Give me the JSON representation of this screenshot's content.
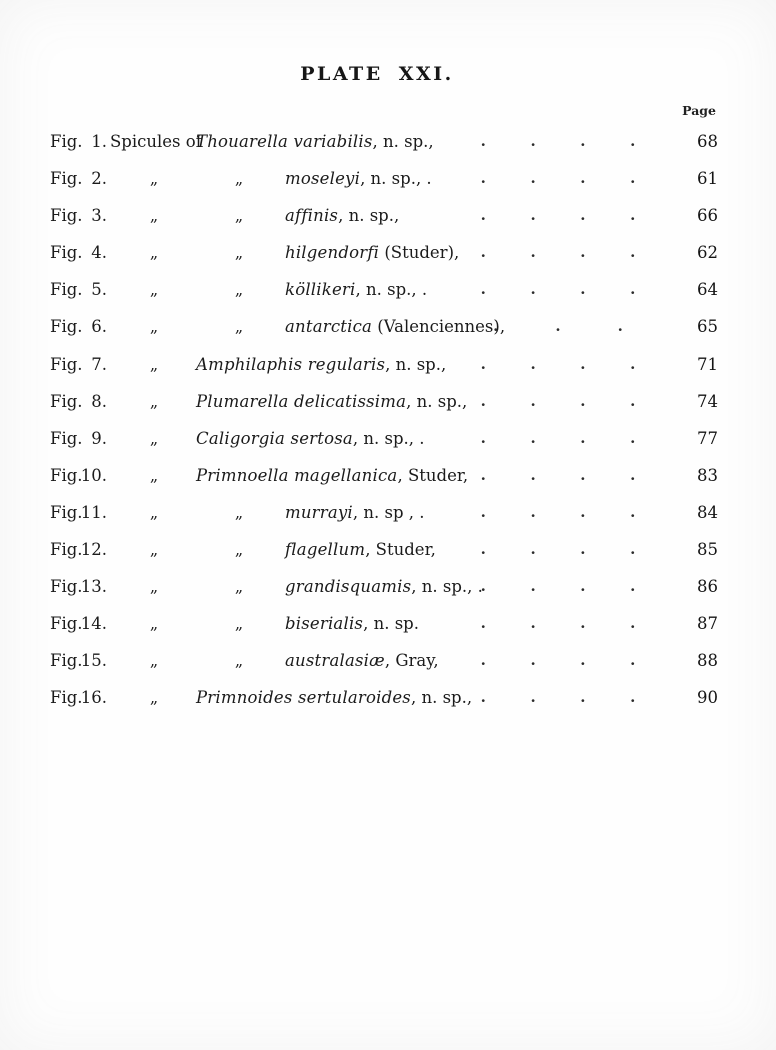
{
  "title": "PLATE XXI.",
  "page_header": "Page",
  "fig_label": "Fig.",
  "ditto_mark": "„",
  "rows": [
    {
      "num": "1.",
      "prefix": "Spicules of",
      "second": "",
      "indent": "g",
      "name_italic": "Thouarella variabilis",
      "name_roman": ", n. sp.,",
      "dots": 4,
      "page": "68"
    },
    {
      "num": "2.",
      "prefix": "„",
      "second": "„",
      "indent": "s",
      "name_italic": "moseleyi",
      "name_roman": ", n. sp., .",
      "dots": 4,
      "page": "61"
    },
    {
      "num": "3.",
      "prefix": "„",
      "second": "„",
      "indent": "s",
      "name_italic": "affinis",
      "name_roman": ", n. sp.,",
      "dots": 4,
      "page": "66"
    },
    {
      "num": "4.",
      "prefix": "„",
      "second": "„",
      "indent": "s",
      "name_italic": "hilgendorfi",
      "name_roman": " (Studer),",
      "dots": 4,
      "page": "62"
    },
    {
      "num": "5.",
      "prefix": "„",
      "second": "„",
      "indent": "s",
      "name_italic": "köllikeri",
      "name_roman": ", n. sp., .",
      "dots": 4,
      "page": "64"
    },
    {
      "num": "6.",
      "prefix": "„",
      "second": "„",
      "indent": "s",
      "name_italic": "antarctica",
      "name_roman": " (Valenciennes),",
      "dots": 3,
      "page": "65"
    },
    {
      "num": "7.",
      "prefix": "„",
      "second": "",
      "indent": "g",
      "name_italic": "Amphilaphis regularis",
      "name_roman": ", n. sp.,",
      "dots": 4,
      "page": "71"
    },
    {
      "num": "8.",
      "prefix": "„",
      "second": "",
      "indent": "g",
      "name_italic": "Plumarella delicatissima",
      "name_roman": ", n. sp.,",
      "dots": 4,
      "page": "74"
    },
    {
      "num": "9.",
      "prefix": "„",
      "second": "",
      "indent": "g",
      "name_italic": "Caligorgia sertosa",
      "name_roman": ", n. sp., .",
      "dots": 4,
      "page": "77"
    },
    {
      "num": "10.",
      "prefix": "„",
      "second": "",
      "indent": "g",
      "name_italic": "Primnoella magellanica",
      "name_roman": ", Studer,",
      "dots": 4,
      "page": "83"
    },
    {
      "num": "11.",
      "prefix": "„",
      "second": "„",
      "indent": "s",
      "name_italic": "murrayi",
      "name_roman": ", n. sp , .",
      "dots": 4,
      "page": "84"
    },
    {
      "num": "12.",
      "prefix": "„",
      "second": "„",
      "indent": "s",
      "name_italic": "flagellum",
      "name_roman": ", Studer,",
      "dots": 4,
      "page": "85"
    },
    {
      "num": "13.",
      "prefix": "„",
      "second": "„",
      "indent": "s",
      "name_italic": "grandisquamis",
      "name_roman": ", n. sp., .",
      "dots": 4,
      "page": "86"
    },
    {
      "num": "14.",
      "prefix": "„",
      "second": "„",
      "indent": "s",
      "name_italic": "biserialis",
      "name_roman": ", n. sp.",
      "dots": 4,
      "page": "87"
    },
    {
      "num": "15.",
      "prefix": "„",
      "second": "„",
      "indent": "s",
      "name_italic": "australasiæ",
      "name_roman": ", Gray,",
      "dots": 4,
      "page": "88"
    },
    {
      "num": "16.",
      "prefix": "„",
      "second": "",
      "indent": "g",
      "name_italic": "Primnoides sertularoides",
      "name_roman": ", n. sp.,",
      "dots": 4,
      "page": "90"
    }
  ]
}
